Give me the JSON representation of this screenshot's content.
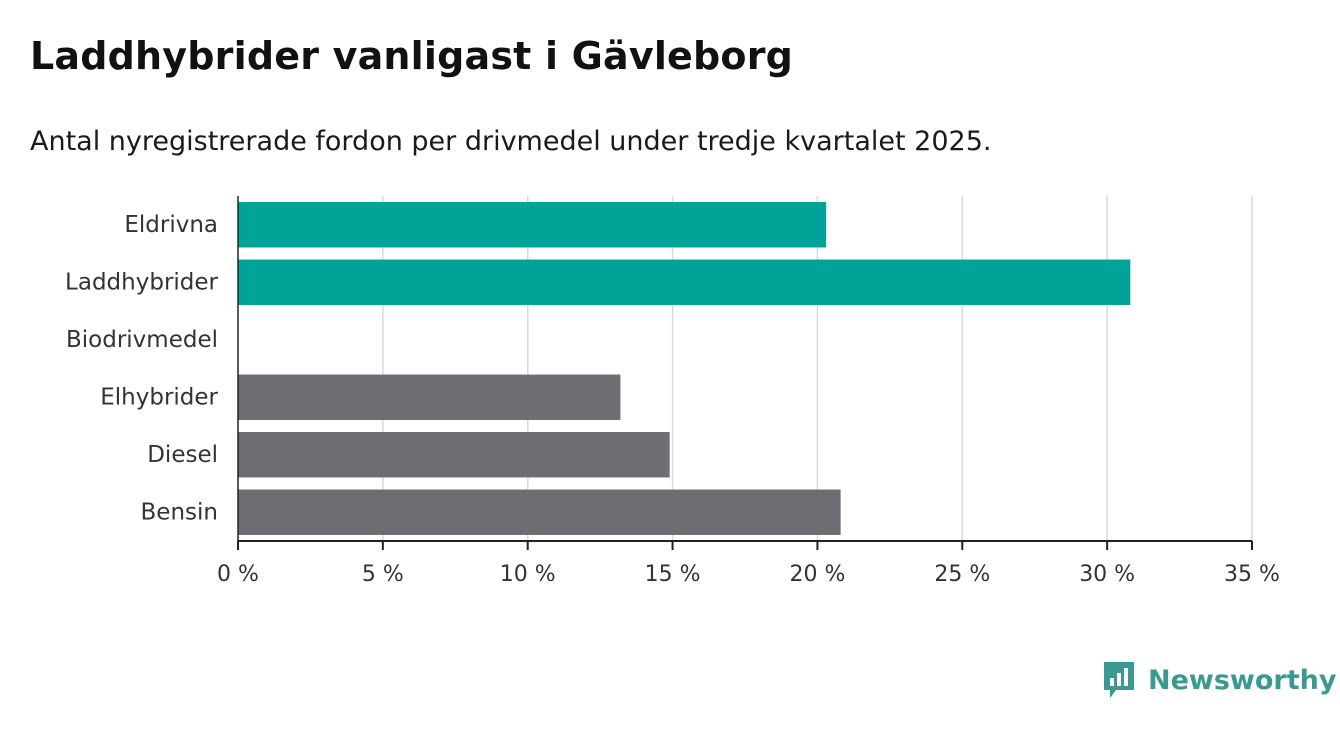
{
  "title": "Laddhybrider vanligast i Gävleborg",
  "subtitle": "Antal nyregistrerade fordon per drivmedel under tredje kvartalet 2025.",
  "brand": {
    "name": "Newsworthy",
    "icon": "newsworthy-logo-icon",
    "color": "#3a9a92"
  },
  "colors": {
    "highlight": "#00a398",
    "default": "#6e6d73",
    "grid": "#d9d9d9",
    "axis": "#222222"
  },
  "chart_data": {
    "type": "bar",
    "orientation": "horizontal",
    "categories": [
      "Eldrivna",
      "Laddhybrider",
      "Biodrivmedel",
      "Elhybrider",
      "Diesel",
      "Bensin"
    ],
    "values": [
      20.3,
      30.8,
      0,
      13.2,
      14.9,
      20.8
    ],
    "highlighted": [
      true,
      true,
      false,
      false,
      false,
      false
    ],
    "xlim": [
      0,
      35
    ],
    "xticks": [
      0,
      5,
      10,
      15,
      20,
      25,
      30,
      35
    ],
    "tick_labels": [
      "0 %",
      "5 %",
      "10 %",
      "15 %",
      "20 %",
      "25 %",
      "30 %",
      "35 %"
    ],
    "grid": true
  }
}
